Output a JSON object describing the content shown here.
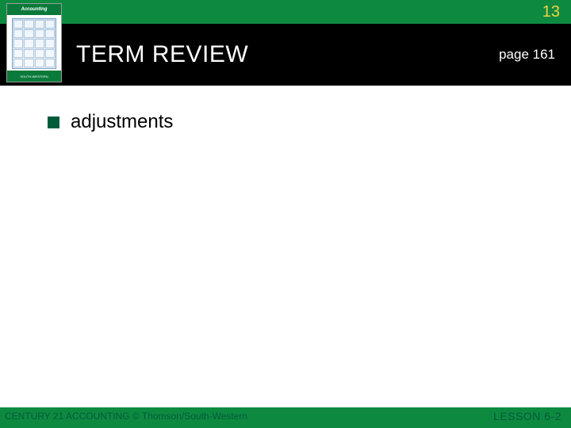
{
  "colors": {
    "top_band_bg": "#0e8a40",
    "title_band_bg": "#000000",
    "footer_band_bg": "#0e8a40",
    "page_number_color": "#f4d03f",
    "title_text_color": "#ffffff",
    "page_ref_color": "#ffffff",
    "bullet_color": "#005b3b",
    "footer_left_color": "#005b3b",
    "footer_right_color": "#005b3b",
    "slide_bg": "#ffffff"
  },
  "header": {
    "page_number": "13",
    "title": "TERM REVIEW",
    "page_ref": "page 161"
  },
  "book": {
    "brand": "Accounting",
    "bottom_text": "SOUTH-WESTERN"
  },
  "content": {
    "bullets": [
      {
        "text": "adjustments"
      }
    ]
  },
  "footer": {
    "left": "CENTURY 21 ACCOUNTING © Thomson/South-Western",
    "right": "LESSON  6-2"
  }
}
